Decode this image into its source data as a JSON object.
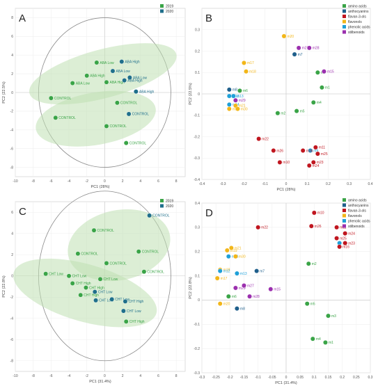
{
  "chart_data": [
    {
      "type": "scatter",
      "panel_label": "A",
      "xlabel": "PC1 (28%)",
      "ylabel": "PC2 (22.5%)",
      "xlim": [
        -10,
        9
      ],
      "ylim": [
        -9,
        9
      ],
      "xticks": [
        -10,
        -8,
        -6,
        -4,
        -2,
        0,
        2,
        4,
        6,
        8
      ],
      "yticks": [
        -8,
        -6,
        -4,
        -2,
        0,
        2,
        4,
        6,
        8
      ],
      "legend": [
        {
          "name": "2019",
          "color": "#3aa447"
        },
        {
          "name": "2020",
          "color": "#1f6f8b"
        }
      ],
      "points": [
        {
          "label": "ABA Low",
          "x": -0.9,
          "y": 3.2,
          "color": "#3aa447"
        },
        {
          "label": "ABA High",
          "x": 1.9,
          "y": 3.3,
          "color": "#1f6f8b"
        },
        {
          "label": "ABA Low",
          "x": 0.9,
          "y": 2.3,
          "color": "#1f6f8b"
        },
        {
          "label": "ABA High",
          "x": -2.0,
          "y": 1.8,
          "color": "#3aa447"
        },
        {
          "label": "ABA Low",
          "x": -3.6,
          "y": 1.0,
          "color": "#3aa447"
        },
        {
          "label": "ABA High",
          "x": 0.2,
          "y": 1.1,
          "color": "#3aa447"
        },
        {
          "label": "ABA Low",
          "x": 2.8,
          "y": 1.6,
          "color": "#1f6f8b"
        },
        {
          "label": "ABA High",
          "x": 2.2,
          "y": 1.3,
          "color": "#1f6f8b"
        },
        {
          "label": "ABA High",
          "x": 3.5,
          "y": 0.1,
          "color": "#1f6f8b"
        },
        {
          "label": "CONTROL",
          "x": -6.0,
          "y": -0.6,
          "color": "#3aa447"
        },
        {
          "label": "CONTROL",
          "x": 1.4,
          "y": -1.1,
          "color": "#3aa447"
        },
        {
          "label": "CONTROL",
          "x": 2.7,
          "y": -2.3,
          "color": "#1f6f8b"
        },
        {
          "label": "CONTROL",
          "x": -5.5,
          "y": -2.7,
          "color": "#3aa447"
        },
        {
          "label": "CONTROL",
          "x": 0.2,
          "y": -3.6,
          "color": "#3aa447"
        },
        {
          "label": "CONTROL",
          "x": 2.4,
          "y": -5.4,
          "color": "#3aa447"
        }
      ],
      "ellipses": [
        {
          "cx": -0.2,
          "cy": 2.0,
          "rx": 8.5,
          "ry": 2.6,
          "angle_deg": -15
        },
        {
          "cx": -1.0,
          "cy": -2.8,
          "rx": 6.8,
          "ry": 2.8,
          "angle_deg": -10
        }
      ]
    },
    {
      "type": "scatter",
      "panel_label": "B",
      "xlabel": "PC1 (28%)",
      "ylabel": "PC2 (22.5%)",
      "xlim": [
        -0.4,
        0.4
      ],
      "ylim": [
        -0.4,
        0.4
      ],
      "xticks": [
        -0.4,
        -0.3,
        -0.2,
        -0.1,
        0,
        0.1,
        0.2,
        0.3,
        0.4
      ],
      "yticks": [
        -0.4,
        -0.3,
        -0.2,
        -0.1,
        0,
        0.1,
        0.2,
        0.3
      ],
      "legend": [
        {
          "name": "amino acids",
          "color": "#3aa447"
        },
        {
          "name": "anthocyanins",
          "color": "#1f5f8b"
        },
        {
          "name": "flavan-3-ols",
          "color": "#c0161f"
        },
        {
          "name": "flavonols",
          "color": "#f2b619"
        },
        {
          "name": "phenolic acids",
          "color": "#1fa0d8"
        },
        {
          "name": "stilbenoids",
          "color": "#9b2fae"
        }
      ],
      "points": [
        {
          "label": "m20",
          "x": -0.01,
          "y": 0.27,
          "color": "#f2b619"
        },
        {
          "label": "m27",
          "x": 0.06,
          "y": 0.215,
          "color": "#9b2fae"
        },
        {
          "label": "m28",
          "x": 0.11,
          "y": 0.215,
          "color": "#9b2fae"
        },
        {
          "label": "m7",
          "x": 0.04,
          "y": 0.185,
          "color": "#1f5f8b"
        },
        {
          "label": "m17",
          "x": -0.2,
          "y": 0.145,
          "color": "#f2b619"
        },
        {
          "label": "m18",
          "x": -0.19,
          "y": 0.105,
          "color": "#f2b619"
        },
        {
          "label": "m3",
          "x": 0.15,
          "y": 0.1,
          "color": "#3aa447"
        },
        {
          "label": "m15",
          "x": 0.18,
          "y": 0.105,
          "color": "#9b2fae"
        },
        {
          "label": "m1",
          "x": 0.17,
          "y": 0.03,
          "color": "#3aa447"
        },
        {
          "label": "m8",
          "x": -0.27,
          "y": 0.02,
          "color": "#1f5f8b"
        },
        {
          "label": "m6",
          "x": -0.22,
          "y": 0.015,
          "color": "#3aa447"
        },
        {
          "label": "m12",
          "x": -0.27,
          "y": -0.01,
          "color": "#1fa0d8"
        },
        {
          "label": "m13",
          "x": -0.25,
          "y": -0.01,
          "color": "#1fa0d8"
        },
        {
          "label": "m29",
          "x": -0.24,
          "y": -0.03,
          "color": "#9b2fae"
        },
        {
          "label": "m14",
          "x": -0.27,
          "y": -0.05,
          "color": "#1fa0d8"
        },
        {
          "label": "m21",
          "x": -0.24,
          "y": -0.055,
          "color": "#f2b619"
        },
        {
          "label": "m30",
          "x": -0.23,
          "y": -0.07,
          "color": "#f2b619"
        },
        {
          "label": "m19",
          "x": -0.27,
          "y": -0.07,
          "color": "#f2b619"
        },
        {
          "label": "m4",
          "x": 0.13,
          "y": -0.04,
          "color": "#3aa447"
        },
        {
          "label": "m5",
          "x": 0.05,
          "y": -0.08,
          "color": "#3aa447"
        },
        {
          "label": "m2",
          "x": -0.04,
          "y": -0.09,
          "color": "#3aa447"
        },
        {
          "label": "m22",
          "x": -0.13,
          "y": -0.21,
          "color": "#c0161f"
        },
        {
          "label": "m11",
          "x": 0.14,
          "y": -0.25,
          "color": "#c0161f"
        },
        {
          "label": "m9",
          "x": 0.115,
          "y": -0.265,
          "color": "#1fa0d8"
        },
        {
          "label": "m26",
          "x": -0.06,
          "y": -0.265,
          "color": "#c0161f"
        },
        {
          "label": "m16",
          "x": 0.08,
          "y": -0.265,
          "color": "#c0161f"
        },
        {
          "label": "m25",
          "x": 0.15,
          "y": -0.28,
          "color": "#c0161f"
        },
        {
          "label": "m10",
          "x": -0.03,
          "y": -0.32,
          "color": "#c0161f"
        },
        {
          "label": "m23",
          "x": 0.13,
          "y": -0.32,
          "color": "#c0161f"
        },
        {
          "label": "m24",
          "x": 0.11,
          "y": -0.335,
          "color": "#c0161f"
        }
      ]
    },
    {
      "type": "scatter",
      "panel_label": "C",
      "xlabel": "PC1 (31.4%)",
      "ylabel": "PC2 (22.8%)",
      "xlim": [
        -10,
        9
      ],
      "ylim": [
        -9,
        7
      ],
      "xticks": [
        -10,
        -8,
        -6,
        -4,
        -2,
        0,
        2,
        4,
        6,
        8
      ],
      "yticks": [
        -8,
        -6,
        -4,
        -2,
        0,
        2,
        4,
        6
      ],
      "legend": [
        {
          "name": "2019",
          "color": "#3aa447"
        },
        {
          "name": "2020",
          "color": "#1f6f8b"
        }
      ],
      "points": [
        {
          "label": "CONTROL",
          "x": 5.0,
          "y": 5.7,
          "color": "#1f6f8b"
        },
        {
          "label": "CONTROL",
          "x": -1.2,
          "y": 4.3,
          "color": "#3aa447"
        },
        {
          "label": "CONTROL",
          "x": 3.8,
          "y": 2.3,
          "color": "#3aa447"
        },
        {
          "label": "CONTROL",
          "x": -3.0,
          "y": 2.1,
          "color": "#3aa447"
        },
        {
          "label": "CONTROL",
          "x": 0.2,
          "y": 1.2,
          "color": "#3aa447"
        },
        {
          "label": "CONTROL",
          "x": 4.4,
          "y": 0.4,
          "color": "#3aa447"
        },
        {
          "label": "CHT Low",
          "x": -6.6,
          "y": 0.2,
          "color": "#3aa447"
        },
        {
          "label": "CHT Low",
          "x": -4.0,
          "y": 0.0,
          "color": "#3aa447"
        },
        {
          "label": "CHT Low",
          "x": -0.5,
          "y": -0.3,
          "color": "#3aa447"
        },
        {
          "label": "CHT High",
          "x": -3.6,
          "y": -0.7,
          "color": "#3aa447"
        },
        {
          "label": "CHT High",
          "x": -2.1,
          "y": -1.1,
          "color": "#3aa447"
        },
        {
          "label": "CHT Low",
          "x": -1.1,
          "y": -1.5,
          "color": "#1f6f8b"
        },
        {
          "label": "CHT High",
          "x": -2.7,
          "y": -1.8,
          "color": "#3aa447"
        },
        {
          "label": "CHT Low",
          "x": 0.8,
          "y": -2.2,
          "color": "#1f6f8b"
        },
        {
          "label": "CHT Low",
          "x": -1.0,
          "y": -2.3,
          "color": "#1f6f8b"
        },
        {
          "label": "CHT High",
          "x": 2.3,
          "y": -2.4,
          "color": "#1f6f8b"
        },
        {
          "label": "CHT Low",
          "x": 2.1,
          "y": -3.3,
          "color": "#1f6f8b"
        },
        {
          "label": "CHT High",
          "x": 2.4,
          "y": -4.3,
          "color": "#3aa447"
        }
      ],
      "ellipses": [
        {
          "cx": 1.6,
          "cy": 2.9,
          "rx": 5.8,
          "ry": 3.3,
          "angle_deg": -12
        },
        {
          "cx": -2.2,
          "cy": -1.6,
          "rx": 8.3,
          "ry": 2.7,
          "angle_deg": 16
        }
      ]
    },
    {
      "type": "scatter",
      "panel_label": "D",
      "xlabel": "PC1 (31.4%)",
      "ylabel": "PC2 (22.8%)",
      "xlim": [
        -0.3,
        0.3
      ],
      "ylim": [
        -0.3,
        0.4
      ],
      "xticks": [
        -0.3,
        -0.25,
        -0.2,
        -0.15,
        -0.1,
        -0.05,
        0,
        0.05,
        0.1,
        0.15,
        0.2,
        0.25,
        0.3
      ],
      "yticks": [
        -0.3,
        -0.2,
        -0.1,
        0,
        0.1,
        0.2,
        0.3,
        0.4
      ],
      "legend": [
        {
          "name": "amino acids",
          "color": "#3aa447"
        },
        {
          "name": "anthocyanins",
          "color": "#1f5f8b"
        },
        {
          "name": "flavan-3-ols",
          "color": "#c0161f"
        },
        {
          "name": "flavonols",
          "color": "#f2b619"
        },
        {
          "name": "phenolic acids",
          "color": "#1fa0d8"
        },
        {
          "name": "stilbenoids",
          "color": "#9b2fae"
        }
      ],
      "points": [
        {
          "label": "m10",
          "x": 0.1,
          "y": 0.36,
          "color": "#c0161f"
        },
        {
          "label": "m22",
          "x": -0.1,
          "y": 0.3,
          "color": "#c0161f"
        },
        {
          "label": "m26",
          "x": 0.09,
          "y": 0.305,
          "color": "#c0161f"
        },
        {
          "label": "m11",
          "x": 0.18,
          "y": 0.3,
          "color": "#c0161f"
        },
        {
          "label": "m24",
          "x": 0.21,
          "y": 0.275,
          "color": "#c0161f"
        },
        {
          "label": "m25",
          "x": 0.18,
          "y": 0.255,
          "color": "#c0161f"
        },
        {
          "label": "m9",
          "x": 0.19,
          "y": 0.235,
          "color": "#1fa0d8"
        },
        {
          "label": "m23",
          "x": 0.21,
          "y": 0.235,
          "color": "#c0161f"
        },
        {
          "label": "m16",
          "x": 0.19,
          "y": 0.22,
          "color": "#c0161f"
        },
        {
          "label": "m19",
          "x": -0.21,
          "y": 0.205,
          "color": "#f2b619"
        },
        {
          "label": "m21",
          "x": -0.195,
          "y": 0.215,
          "color": "#f2b619"
        },
        {
          "label": "m14",
          "x": -0.205,
          "y": 0.18,
          "color": "#1fa0d8"
        },
        {
          "label": "m30",
          "x": -0.18,
          "y": 0.18,
          "color": "#f2b619"
        },
        {
          "label": "m2",
          "x": 0.08,
          "y": 0.15,
          "color": "#3aa447"
        },
        {
          "label": "m18",
          "x": -0.235,
          "y": 0.125,
          "color": "#f2b619"
        },
        {
          "label": "m12",
          "x": -0.235,
          "y": 0.12,
          "color": "#1fa0d8"
        },
        {
          "label": "m7",
          "x": -0.105,
          "y": 0.12,
          "color": "#1f5f8b"
        },
        {
          "label": "m13",
          "x": -0.175,
          "y": 0.11,
          "color": "#1fa0d8"
        },
        {
          "label": "m17",
          "x": -0.245,
          "y": 0.09,
          "color": "#f2b619"
        },
        {
          "label": "m27",
          "x": -0.15,
          "y": 0.06,
          "color": "#9b2fae"
        },
        {
          "label": "m29",
          "x": -0.18,
          "y": 0.05,
          "color": "#9b2fae"
        },
        {
          "label": "m15",
          "x": -0.055,
          "y": 0.045,
          "color": "#9b2fae"
        },
        {
          "label": "m6",
          "x": -0.205,
          "y": 0.015,
          "color": "#3aa447"
        },
        {
          "label": "m28",
          "x": -0.13,
          "y": 0.015,
          "color": "#9b2fae"
        },
        {
          "label": "m20",
          "x": -0.235,
          "y": -0.015,
          "color": "#f2b619"
        },
        {
          "label": "m5",
          "x": 0.075,
          "y": -0.015,
          "color": "#3aa447"
        },
        {
          "label": "m8",
          "x": -0.175,
          "y": -0.035,
          "color": "#1f5f8b"
        },
        {
          "label": "m3",
          "x": 0.15,
          "y": -0.065,
          "color": "#3aa447"
        },
        {
          "label": "m4",
          "x": 0.095,
          "y": -0.16,
          "color": "#3aa447"
        },
        {
          "label": "m1",
          "x": 0.14,
          "y": -0.175,
          "color": "#3aa447"
        }
      ]
    }
  ]
}
